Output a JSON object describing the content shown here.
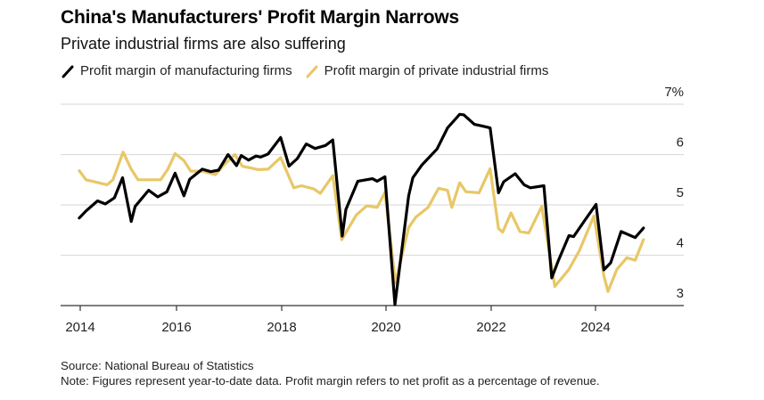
{
  "chart_data": {
    "type": "line",
    "title": "China's Manufacturers' Profit Margin Narrows",
    "subtitle": "Private industrial firms are also suffering",
    "xlabel": "",
    "ylabel": "",
    "x_ticks": [
      2014,
      2016,
      2018,
      2020,
      2022,
      2024
    ],
    "x_tick_labels": [
      "2014",
      "2016",
      "2018",
      "2020",
      "2022",
      "2024"
    ],
    "y_ticks": [
      3,
      4,
      5,
      6,
      7
    ],
    "y_tick_labels": [
      "3",
      "4",
      "5",
      "6",
      "7%"
    ],
    "ylim": [
      3,
      7
    ],
    "xlim": [
      2013.6,
      2025.7
    ],
    "grid": true,
    "legend_position": "top-left",
    "series": [
      {
        "name": "Profit margin of manufacturing firms",
        "color": "#000000",
        "points": [
          [
            2013.98,
            4.74
          ],
          [
            2014.12,
            4.88
          ],
          [
            2014.36,
            5.08
          ],
          [
            2014.52,
            5.02
          ],
          [
            2014.71,
            5.14
          ],
          [
            2014.88,
            5.54
          ],
          [
            2015.06,
            4.67
          ],
          [
            2015.14,
            4.97
          ],
          [
            2015.42,
            5.29
          ],
          [
            2015.61,
            5.16
          ],
          [
            2015.8,
            5.26
          ],
          [
            2015.97,
            5.63
          ],
          [
            2016.14,
            5.18
          ],
          [
            2016.25,
            5.51
          ],
          [
            2016.49,
            5.71
          ],
          [
            2016.65,
            5.66
          ],
          [
            2016.8,
            5.69
          ],
          [
            2016.98,
            6.0
          ],
          [
            2017.14,
            5.78
          ],
          [
            2017.23,
            5.98
          ],
          [
            2017.37,
            5.89
          ],
          [
            2017.51,
            5.97
          ],
          [
            2017.6,
            5.95
          ],
          [
            2017.74,
            6.01
          ],
          [
            2017.98,
            6.34
          ],
          [
            2018.14,
            5.77
          ],
          [
            2018.3,
            5.92
          ],
          [
            2018.47,
            6.21
          ],
          [
            2018.64,
            6.12
          ],
          [
            2018.84,
            6.18
          ],
          [
            2018.98,
            6.29
          ],
          [
            2019.16,
            4.38
          ],
          [
            2019.23,
            4.91
          ],
          [
            2019.46,
            5.47
          ],
          [
            2019.74,
            5.52
          ],
          [
            2019.83,
            5.47
          ],
          [
            2019.98,
            5.56
          ],
          [
            2020.17,
            3.02
          ],
          [
            2020.43,
            5.18
          ],
          [
            2020.51,
            5.54
          ],
          [
            2020.68,
            5.79
          ],
          [
            2020.97,
            6.11
          ],
          [
            2021.17,
            6.53
          ],
          [
            2021.4,
            6.8
          ],
          [
            2021.48,
            6.79
          ],
          [
            2021.68,
            6.6
          ],
          [
            2021.82,
            6.57
          ],
          [
            2021.98,
            6.53
          ],
          [
            2022.14,
            5.24
          ],
          [
            2022.24,
            5.46
          ],
          [
            2022.46,
            5.62
          ],
          [
            2022.63,
            5.4
          ],
          [
            2022.75,
            5.34
          ],
          [
            2023.01,
            5.38
          ],
          [
            2023.16,
            3.55
          ],
          [
            2023.29,
            3.9
          ],
          [
            2023.49,
            4.39
          ],
          [
            2023.58,
            4.37
          ],
          [
            2023.8,
            4.7
          ],
          [
            2024.01,
            5.01
          ],
          [
            2024.16,
            3.71
          ],
          [
            2024.29,
            3.85
          ],
          [
            2024.49,
            4.47
          ],
          [
            2024.76,
            4.35
          ],
          [
            2024.92,
            4.54
          ]
        ]
      },
      {
        "name": "Profit margin of private industrial firms",
        "color": "#E8C766",
        "points": [
          [
            2013.98,
            5.68
          ],
          [
            2014.12,
            5.5
          ],
          [
            2014.56,
            5.4
          ],
          [
            2014.68,
            5.5
          ],
          [
            2014.89,
            6.05
          ],
          [
            2015.06,
            5.71
          ],
          [
            2015.2,
            5.5
          ],
          [
            2015.67,
            5.5
          ],
          [
            2015.82,
            5.71
          ],
          [
            2015.97,
            6.02
          ],
          [
            2016.14,
            5.88
          ],
          [
            2016.27,
            5.67
          ],
          [
            2016.49,
            5.67
          ],
          [
            2016.74,
            5.6
          ],
          [
            2016.88,
            5.77
          ],
          [
            2017.11,
            6.0
          ],
          [
            2017.25,
            5.77
          ],
          [
            2017.56,
            5.7
          ],
          [
            2017.74,
            5.71
          ],
          [
            2017.98,
            5.94
          ],
          [
            2018.23,
            5.34
          ],
          [
            2018.38,
            5.38
          ],
          [
            2018.61,
            5.32
          ],
          [
            2018.74,
            5.23
          ],
          [
            2018.98,
            5.58
          ],
          [
            2019.15,
            4.31
          ],
          [
            2019.43,
            4.8
          ],
          [
            2019.63,
            4.98
          ],
          [
            2019.83,
            4.95
          ],
          [
            2019.98,
            5.25
          ],
          [
            2020.18,
            3.45
          ],
          [
            2020.43,
            4.55
          ],
          [
            2020.57,
            4.76
          ],
          [
            2020.8,
            4.95
          ],
          [
            2021.0,
            5.33
          ],
          [
            2021.17,
            5.29
          ],
          [
            2021.25,
            4.95
          ],
          [
            2021.4,
            5.44
          ],
          [
            2021.52,
            5.26
          ],
          [
            2021.77,
            5.24
          ],
          [
            2021.98,
            5.72
          ],
          [
            2022.14,
            4.53
          ],
          [
            2022.22,
            4.46
          ],
          [
            2022.38,
            4.84
          ],
          [
            2022.55,
            4.47
          ],
          [
            2022.72,
            4.44
          ],
          [
            2022.97,
            4.97
          ],
          [
            2023.22,
            3.38
          ],
          [
            2023.49,
            3.72
          ],
          [
            2023.69,
            4.09
          ],
          [
            2023.97,
            4.78
          ],
          [
            2024.16,
            3.59
          ],
          [
            2024.24,
            3.28
          ],
          [
            2024.41,
            3.72
          ],
          [
            2024.6,
            3.95
          ],
          [
            2024.76,
            3.9
          ],
          [
            2024.92,
            4.31
          ]
        ]
      }
    ]
  },
  "legend": {
    "items": [
      {
        "label": "Profit margin of manufacturing firms",
        "color": "#000000"
      },
      {
        "label": "Profit margin of private industrial firms",
        "color": "#E8C766"
      }
    ]
  },
  "footer": {
    "source": "Source: National Bureau of Statistics",
    "note": "Note: Figures represent year-to-date data. Profit margin refers to net profit as a percentage of revenue."
  },
  "colors": {
    "grid": "#DDDDDD",
    "axis": "#333333",
    "text": "#222222"
  }
}
